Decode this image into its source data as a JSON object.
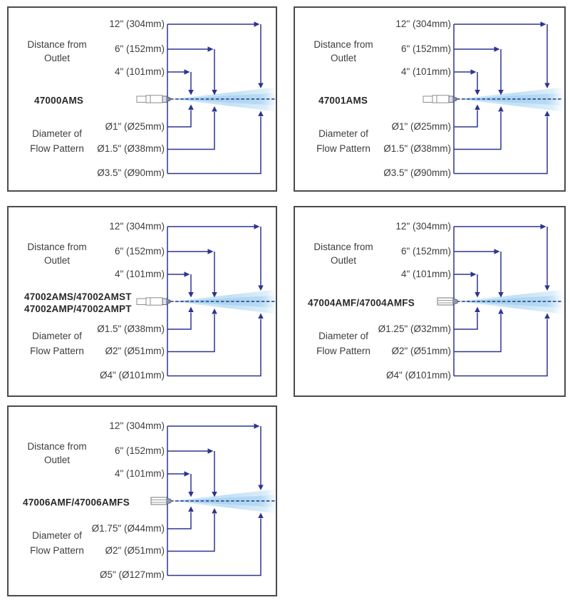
{
  "colors": {
    "line": "#2d3590",
    "centerline": "#27357e",
    "spray": "#b4d9f2",
    "text": "#3d3d3d",
    "model": "#282828",
    "border": "#4b4b4b",
    "background": "#ffffff"
  },
  "shared": {
    "distance_heading_line1": "Distance from",
    "distance_heading_line2": "Outlet",
    "diameter_heading_line1": "Diameter of",
    "diameter_heading_line2": "Flow Pattern",
    "distance_labels": [
      "12\" (304mm)",
      "6\" (152mm)",
      "4\" (101mm)"
    ]
  },
  "panels": [
    {
      "model_lines": [
        "47000AMS"
      ],
      "nozzle": "long",
      "diameters": [
        "Ø1\" (Ø25mm)",
        "Ø1.5\" (Ø38mm)",
        "Ø3.5\" (Ø90mm)"
      ]
    },
    {
      "model_lines": [
        "47001AMS"
      ],
      "nozzle": "long",
      "diameters": [
        "Ø1\" (Ø25mm)",
        "Ø1.5\" (Ø38mm)",
        "Ø3.5\" (Ø90mm)"
      ]
    },
    {
      "model_lines": [
        "47002AMS/47002AMST",
        "47002AMP/47002AMPT"
      ],
      "nozzle": "long",
      "diameters": [
        "Ø1.5\" (Ø38mm)",
        "Ø2\" (Ø51mm)",
        "Ø4\" (Ø101mm)"
      ]
    },
    {
      "model_lines": [
        "47004AMF/47004AMFS"
      ],
      "nozzle": "short",
      "diameters": [
        "Ø1.25\" (Ø32mm)",
        "Ø2\" (Ø51mm)",
        "Ø4\" (Ø101mm)"
      ]
    },
    {
      "model_lines": [
        "47006AMF/47006AMFS"
      ],
      "nozzle": "short",
      "diameters": [
        "Ø1.75\" (Ø44mm)",
        "Ø2\" (Ø51mm)",
        "Ø5\" (Ø127mm)"
      ]
    }
  ]
}
